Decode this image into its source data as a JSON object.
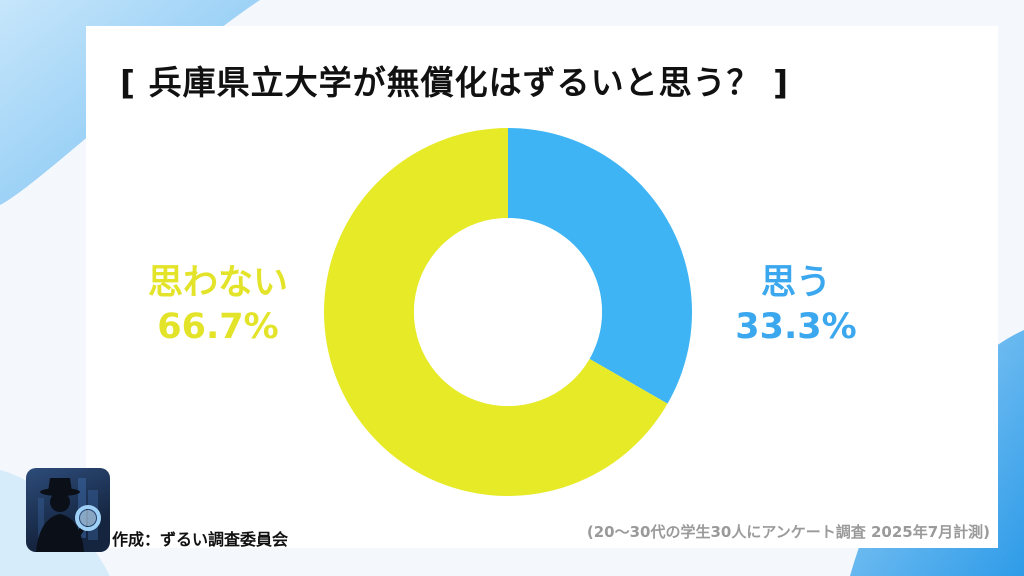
{
  "title": "[ 兵庫県立大学が無償化はずるいと思う？ ]",
  "chart_data": {
    "type": "pie",
    "donut": true,
    "slices": [
      {
        "label": "思う",
        "percent_text": "33.3%",
        "value": 33.3,
        "color": "#3fb4f4"
      },
      {
        "label": "思わない",
        "percent_text": "66.7%",
        "value": 66.7,
        "color": "#e6ea27"
      }
    ],
    "start_angle": "top",
    "direction": "clockwise"
  },
  "credit": "作成：ずるい調査委員会",
  "note": "(20～30代の学生30人にアンケート調査 2025年7月計測)",
  "icons": {
    "avatar": "detective-magnifier-icon"
  },
  "colors": {
    "background": "#f4f7fb",
    "accent": "#3fb4f4",
    "card": "#ffffff"
  }
}
